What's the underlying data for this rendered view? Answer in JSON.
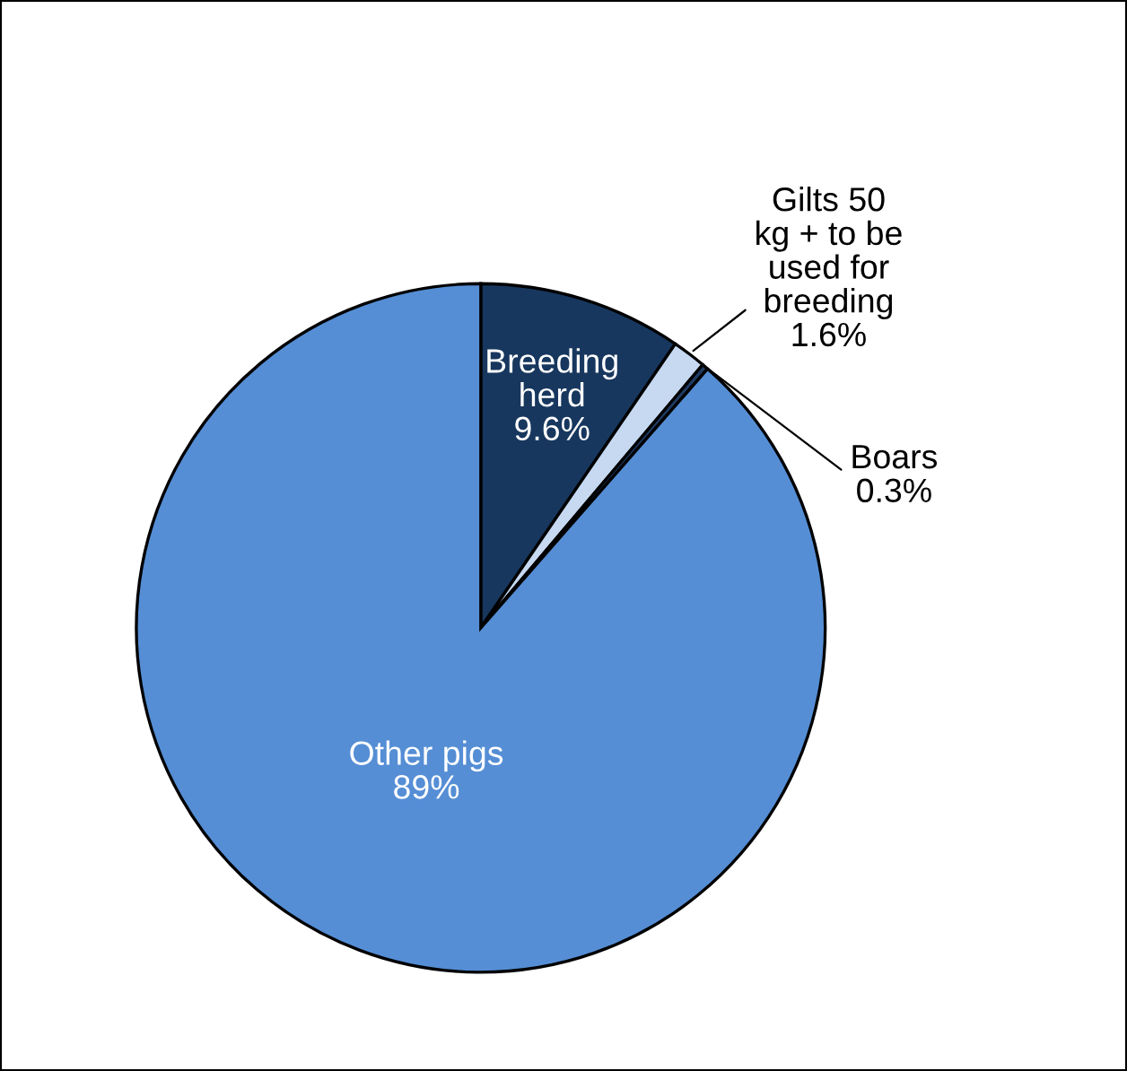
{
  "chart_data": {
    "type": "pie",
    "categories": [
      "Breeding\nherd",
      "Gilts 50\nkg + to be\nused for\nbreeding",
      "Boars",
      "Other pigs"
    ],
    "values": [
      9.6,
      1.6,
      0.3,
      89
    ],
    "value_labels": [
      "9.6%",
      "1.6%",
      "0.3%",
      "89%"
    ],
    "colors": [
      "#17375e",
      "#c6d9f1",
      "#1f3b63",
      "#558ed5"
    ]
  }
}
